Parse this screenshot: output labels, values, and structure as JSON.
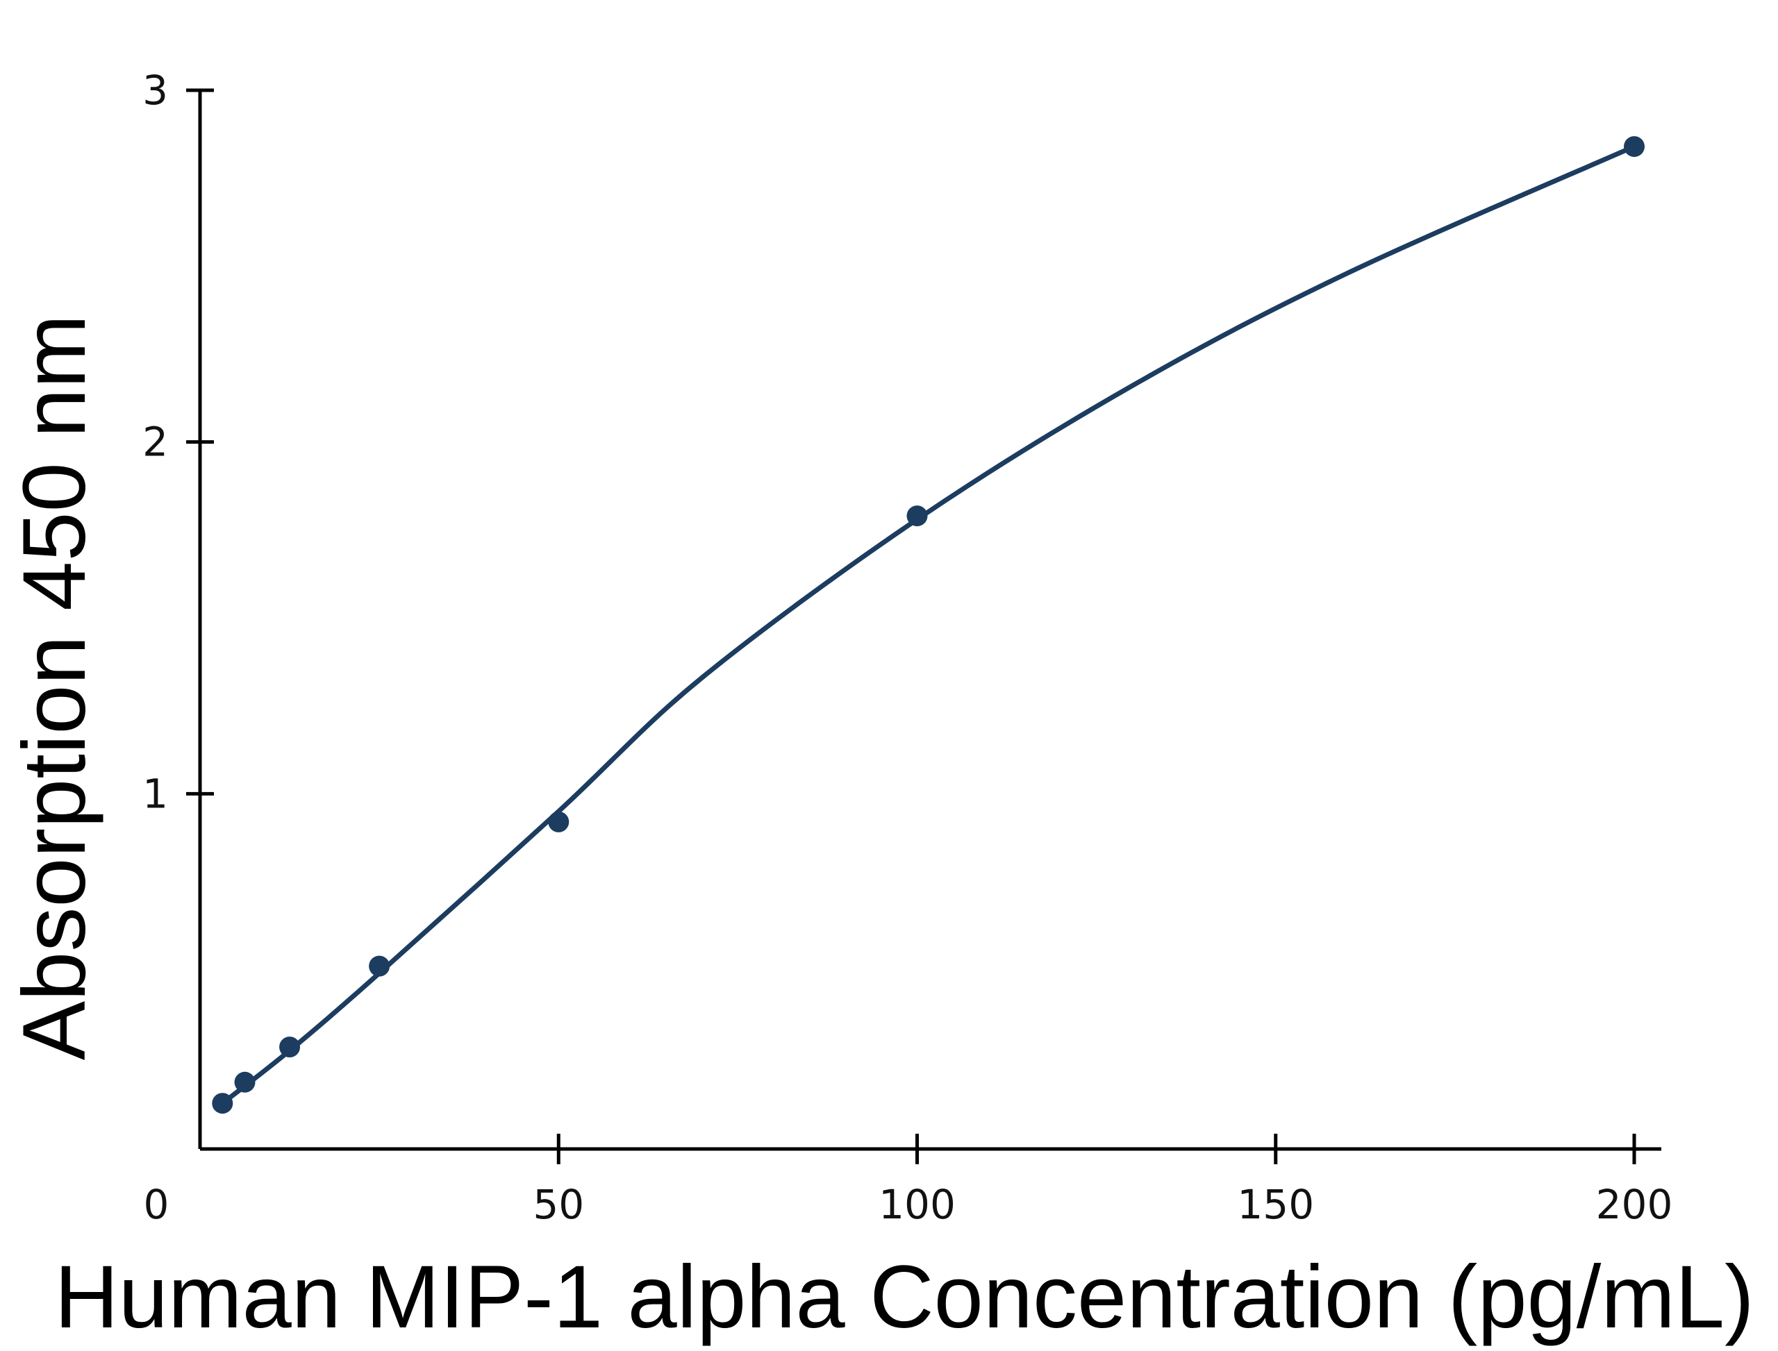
{
  "chart_data": {
    "type": "scatter",
    "title": "",
    "xlabel": "Human MIP-1 alpha Concentration (pg/mL)",
    "ylabel": "Absorption 450 nm",
    "xlim": [
      0,
      205
    ],
    "ylim": [
      0,
      3
    ],
    "x_ticks": [
      0,
      50,
      100,
      150,
      200
    ],
    "y_ticks": [
      1,
      2,
      3
    ],
    "x_tick_labels": [
      "0",
      "50",
      "100",
      "150",
      "200"
    ],
    "y_tick_labels": [
      "1",
      "2",
      "3"
    ],
    "grid": false,
    "legend": "none",
    "series": [
      {
        "x": [
          3.13,
          6.25,
          12.5,
          25,
          50,
          100,
          200
        ],
        "y": [
          0.12,
          0.18,
          0.28,
          0.51,
          0.92,
          1.79,
          2.84
        ]
      }
    ],
    "fit_curve": {
      "x": [
        3.13,
        12.5,
        25,
        50,
        70,
        100,
        130,
        160,
        200
      ],
      "y": [
        0.12,
        0.27,
        0.49,
        0.95,
        1.33,
        1.78,
        2.16,
        2.48,
        2.84
      ]
    },
    "colors": {
      "series": "#1c3c60",
      "axis": "#000000"
    }
  }
}
